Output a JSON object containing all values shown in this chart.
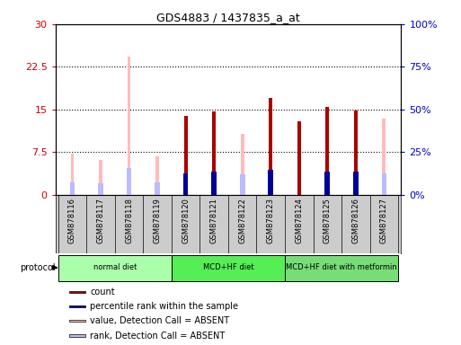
{
  "title": "GDS4883 / 1437835_a_at",
  "samples": [
    "GSM878116",
    "GSM878117",
    "GSM878118",
    "GSM878119",
    "GSM878120",
    "GSM878121",
    "GSM878122",
    "GSM878123",
    "GSM878124",
    "GSM878125",
    "GSM878126",
    "GSM878127"
  ],
  "count": [
    0,
    0,
    0,
    0,
    13.8,
    14.7,
    0,
    17.1,
    13.0,
    15.5,
    14.8,
    0
  ],
  "percentile": [
    0,
    0,
    0,
    0,
    12.5,
    13.6,
    0,
    14.5,
    0,
    13.8,
    13.5,
    0
  ],
  "value_absent": [
    7.2,
    6.2,
    24.3,
    6.7,
    0,
    0,
    10.7,
    0,
    0,
    0,
    0,
    13.4
  ],
  "rank_absent": [
    7.5,
    7.0,
    15.5,
    7.3,
    0,
    0,
    12.3,
    0,
    0,
    0,
    0,
    12.4
  ],
  "count_color": "#aa0000",
  "percentile_color": "#000099",
  "value_absent_color": "#ffbbbb",
  "rank_absent_color": "#bbbbff",
  "ylim_left": [
    0,
    30
  ],
  "ylim_right": [
    0,
    100
  ],
  "yticks_left": [
    0,
    7.5,
    15,
    22.5,
    30
  ],
  "ytick_labels_left": [
    "0",
    "7.5",
    "15",
    "22.5",
    "30"
  ],
  "yticks_right": [
    0,
    25,
    50,
    75,
    100
  ],
  "ytick_labels_right": [
    "0%",
    "25%",
    "50%",
    "75%",
    "100%"
  ],
  "groups": [
    {
      "label": "normal diet",
      "indices": [
        0,
        1,
        2,
        3
      ],
      "color": "#aaffaa"
    },
    {
      "label": "MCD+HF diet",
      "indices": [
        4,
        5,
        6,
        7
      ],
      "color": "#55ee55"
    },
    {
      "label": "MCD+HF diet with metformin",
      "indices": [
        8,
        9,
        10,
        11
      ],
      "color": "#77dd77"
    }
  ],
  "legend_items": [
    {
      "label": "count",
      "color": "#aa0000"
    },
    {
      "label": "percentile rank within the sample",
      "color": "#000099"
    },
    {
      "label": "value, Detection Call = ABSENT",
      "color": "#ffbbbb"
    },
    {
      "label": "rank, Detection Call = ABSENT",
      "color": "#bbbbff"
    }
  ],
  "thin_bar_width": 0.12,
  "thick_bar_width": 0.35,
  "xtick_bg_color": "#cccccc",
  "plot_bg_color": "#ffffff"
}
